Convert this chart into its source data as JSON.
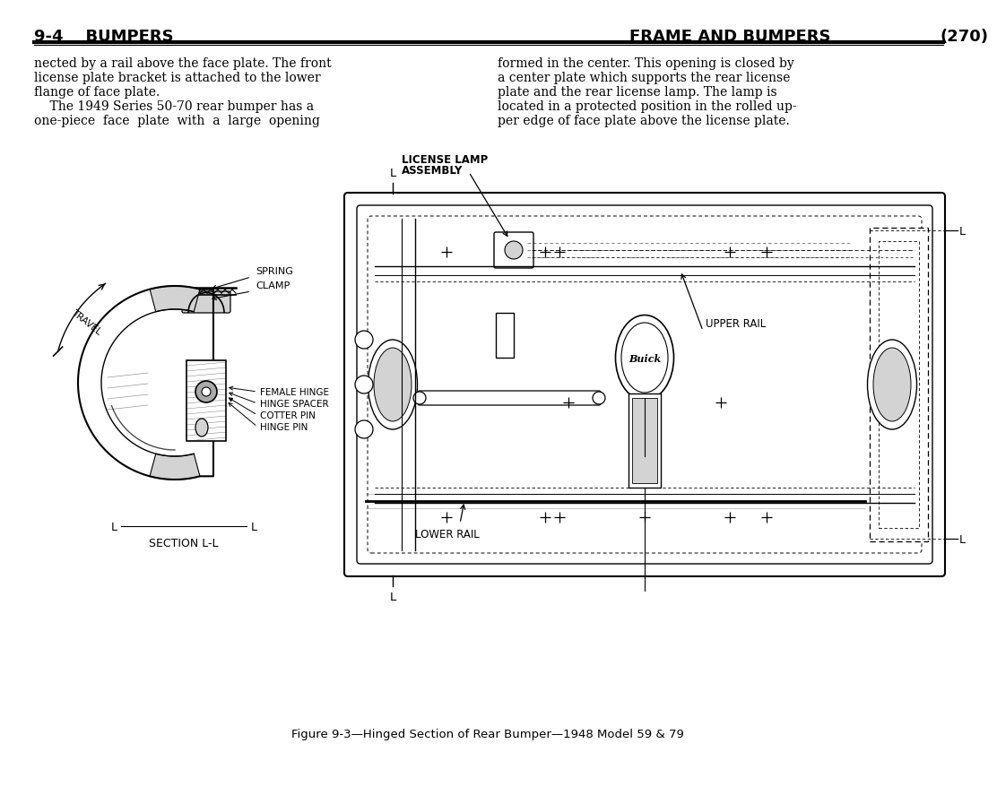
{
  "bg_color": "#ffffff",
  "text_color": "#000000",
  "page_title_left": "9-4    BUMPERS",
  "page_title_right": "FRAME AND BUMPERS",
  "page_number": "(270)",
  "body_text_left_lines": [
    "nected by a rail above the face plate. The front",
    "license plate bracket is attached to the lower",
    "flange of face plate.",
    "    The 1949 Series 50-70 rear bumper has a",
    "one-piece  face  plate  with  a  large  opening"
  ],
  "body_text_right_lines": [
    "formed in the center. This opening is closed by",
    "a center plate which supports the rear license",
    "plate and the rear license lamp. The lamp is",
    "located in a protected position in the rolled up-",
    "per edge of face plate above the license plate."
  ],
  "figure_caption": "Figure 9-3—Hinged Section of Rear Bumper—1948 Model 59 & 79",
  "section_label": "SECTION L-L",
  "label_spring": "SPRING",
  "label_clamp": "CLAMP",
  "label_travel": "TRAVEL",
  "label_female_hinge": "FEMALE HINGE",
  "label_hinge_spacer": "HINGE SPACER",
  "label_cotter_pin": "COTTER PIN",
  "label_hinge_pin": "HINGE PIN",
  "label_license_lamp": "LICENSE LAMP",
  "label_assembly": "ASSEMBLY",
  "label_upper_rail": "UPPER RAIL",
  "label_lower_rail": "LOWER RAIL"
}
